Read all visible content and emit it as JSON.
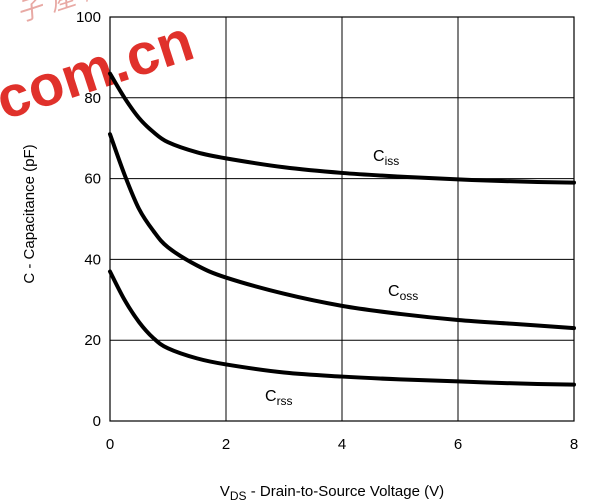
{
  "chart_data": {
    "type": "line",
    "xlabel": {
      "main": "V",
      "sub": "DS",
      "rest": " - Drain-to-Source Voltage (V)"
    },
    "ylabel": "C - Capacitance (pF)",
    "xlim": [
      0,
      8
    ],
    "ylim": [
      0,
      100
    ],
    "x_ticks": [
      0,
      2,
      4,
      6,
      8
    ],
    "y_ticks": [
      0,
      20,
      40,
      60,
      80,
      100
    ],
    "grid": true,
    "series": [
      {
        "name": "Ciss",
        "label_main": "C",
        "label_sub": "iss",
        "x": [
          0,
          0.25,
          0.5,
          0.75,
          1,
          1.5,
          2,
          3,
          4,
          5,
          6,
          7,
          8
        ],
        "y": [
          86,
          80,
          75,
          71.5,
          69,
          66.5,
          65,
          62.8,
          61.4,
          60.5,
          59.8,
          59.3,
          59
        ]
      },
      {
        "name": "Coss",
        "label_main": "C",
        "label_sub": "oss",
        "x": [
          0,
          0.25,
          0.5,
          0.75,
          1,
          1.5,
          2,
          3,
          4,
          5,
          6,
          7,
          8
        ],
        "y": [
          71,
          61,
          52.5,
          47,
          43,
          38.5,
          35.5,
          31.5,
          28.5,
          26.5,
          25,
          24,
          23
        ]
      },
      {
        "name": "Crss",
        "label_main": "C",
        "label_sub": "rss",
        "x": [
          0,
          0.25,
          0.5,
          0.75,
          1,
          1.5,
          2,
          3,
          4,
          5,
          6,
          7,
          8
        ],
        "y": [
          37,
          30,
          24.5,
          20.5,
          18,
          15.5,
          14,
          12,
          11,
          10.3,
          9.8,
          9.3,
          9
        ]
      }
    ]
  },
  "watermark": {
    "text": "com.cn",
    "chars": "子 産 網"
  }
}
